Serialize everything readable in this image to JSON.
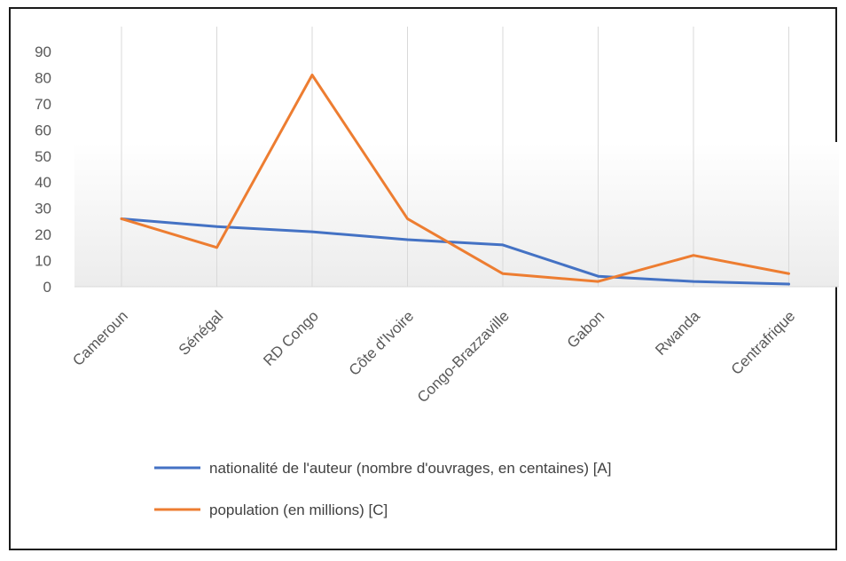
{
  "chart_data": {
    "type": "line",
    "title": "",
    "xlabel": "",
    "ylabel": "",
    "categories": [
      "Cameroun",
      "Sénégal",
      "RD Congo",
      "Côte d'Ivoire",
      "Congo-Brazzaville",
      "Gabon",
      "Rwanda",
      "Centrafrique"
    ],
    "ylim": [
      0,
      90
    ],
    "yticks": [
      "0",
      "10",
      "20",
      "30",
      "40",
      "50",
      "60",
      "70",
      "80",
      "90"
    ],
    "grid": "vertical",
    "legend_position": "bottom",
    "series": [
      {
        "name": "nationalité de l'auteur (nombre d'ouvrages, en centaines) [A]",
        "color": "#4472C4",
        "values": [
          26,
          23,
          21,
          18,
          16,
          4,
          2,
          1
        ]
      },
      {
        "name": "population (en millions) [C]",
        "color": "#ED7D31",
        "values": [
          26,
          15,
          81,
          26,
          5,
          2,
          12,
          5
        ]
      }
    ]
  }
}
